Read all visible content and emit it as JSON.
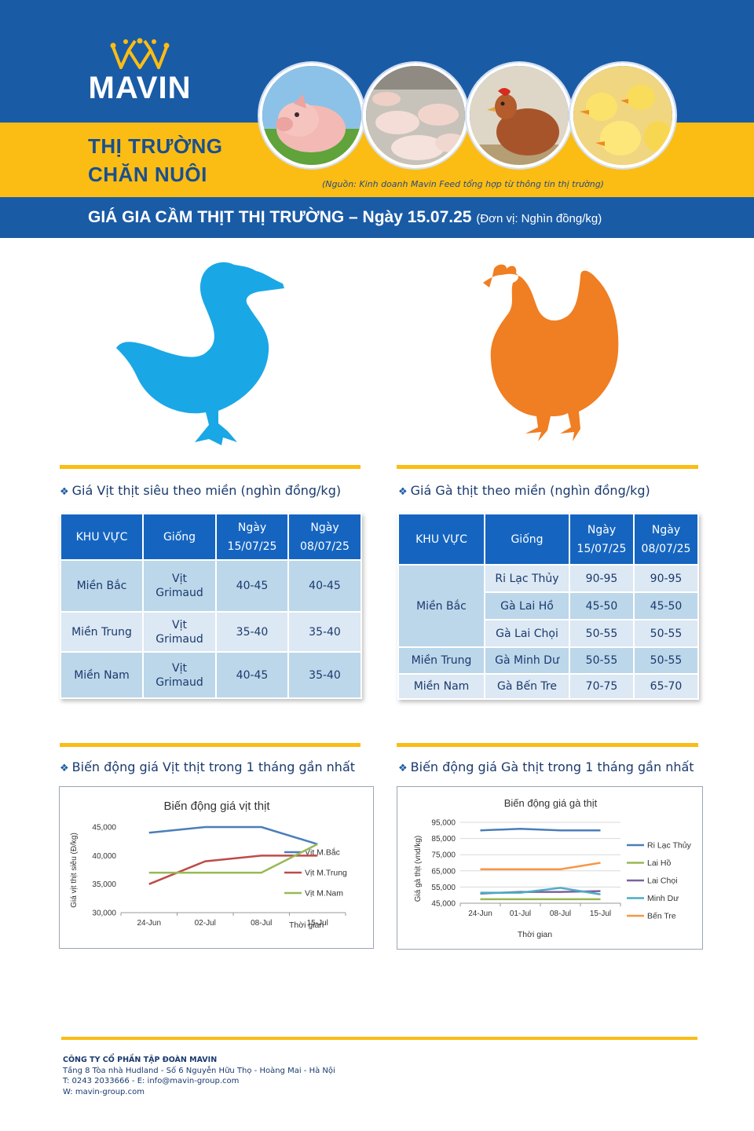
{
  "brand": {
    "logo_text": "MAVIN",
    "crown_icon": "crown-icon"
  },
  "header": {
    "section_title_line1": "THỊ TRƯỜNG",
    "section_title_line2": "CHĂN NUÔI",
    "source_note": "(Nguồn: Kinh doanh Mavin Feed tổng hợp từ thông tin thị trường)",
    "banner_title": "GIÁ GIA CẦM THỊT THỊ TRƯỜNG – Ngày 15.07.25",
    "banner_unit": "(Đơn vị: Nghìn đồng/kg)",
    "photos": [
      "piglet-photo",
      "pig-farm-photo",
      "chicken-photo",
      "ducklings-photo"
    ]
  },
  "colors": {
    "brand_blue": "#1a5ba6",
    "brand_yellow": "#fbbd14",
    "duck_blue": "#1aa7e6",
    "hen_orange": "#f07e22"
  },
  "duck_table": {
    "heading": "Giá Vịt thịt siêu theo miền (nghìn đồng/kg)",
    "columns": [
      "KHU VỰC",
      "Giống",
      "Ngày 15/07/25",
      "Ngày 08/07/25"
    ],
    "rows": [
      {
        "region": "Miền Bắc",
        "breed": "Vịt Grimaud",
        "price_new": "40-45",
        "price_old": "40-45"
      },
      {
        "region": "Miền Trung",
        "breed": "Vịt Grimaud",
        "price_new": "35-40",
        "price_old": "35-40"
      },
      {
        "region": "Miền Nam",
        "breed": "Vịt Grimaud",
        "price_new": "40-45",
        "price_old": "35-40"
      }
    ]
  },
  "chicken_table": {
    "heading": "Giá Gà thịt theo miền (nghìn đồng/kg)",
    "columns": [
      "KHU VỰC",
      "Giống",
      "Ngày 15/07/25",
      "Ngày 08/07/25"
    ],
    "rows": [
      {
        "region": "Miền Bắc",
        "breed": "Ri Lạc Thủy",
        "price_new": "90-95",
        "price_old": "90-95"
      },
      {
        "region": "",
        "breed": "Gà Lai Hồ",
        "price_new": "45-50",
        "price_old": "45-50"
      },
      {
        "region": "",
        "breed": "Gà Lai Chọi",
        "price_new": "50-55",
        "price_old": "50-55"
      },
      {
        "region": "Miền Trung",
        "breed": "Gà Minh Dư",
        "price_new": "50-55",
        "price_old": "50-55"
      },
      {
        "region": "Miền Nam",
        "breed": "Gà Bến Tre",
        "price_new": "70-75",
        "price_old": "65-70"
      }
    ]
  },
  "duck_chart_heading": "Biến động giá Vịt thịt trong 1 tháng gần nhất",
  "chicken_chart_heading": "Biến động giá Gà thịt trong 1 tháng gần nhất",
  "chart_data": [
    {
      "type": "line",
      "title": "Biến động giá vịt thịt",
      "xlabel": "Thời gian",
      "ylabel": "Giá vịt thịt siêu (Đ/kg)",
      "categories": [
        "24-Jun",
        "02-Jul",
        "08-Jul",
        "15-Jul"
      ],
      "ylim": [
        30000,
        45000
      ],
      "yticks": [
        30000,
        35000,
        40000,
        45000
      ],
      "ytick_labels": [
        "30,000",
        "35,000",
        "40,000",
        "45,000"
      ],
      "legend": "right",
      "series": [
        {
          "name": "Vịt M.Bắc",
          "color": "#4a7ebb",
          "values": [
            44000,
            45000,
            45000,
            42000
          ]
        },
        {
          "name": "Vịt M.Trung",
          "color": "#be4b48",
          "values": [
            35000,
            39000,
            40000,
            40000
          ]
        },
        {
          "name": "Vịt M.Nam",
          "color": "#98b954",
          "values": [
            37000,
            37000,
            37000,
            42000
          ]
        }
      ]
    },
    {
      "type": "line",
      "title": "Biến động giá gà thịt",
      "xlabel": "Thời gian",
      "ylabel": "Giá gà thịt (vnd/kg)",
      "categories": [
        "24-Jun",
        "01-Jul",
        "08-Jul",
        "15-Jul"
      ],
      "ylim": [
        45000,
        95000
      ],
      "yticks": [
        45000,
        55000,
        65000,
        75000,
        85000,
        95000
      ],
      "ytick_labels": [
        "45,000",
        "55,000",
        "65,000",
        "75,000",
        "85,000",
        "95,000"
      ],
      "grid": true,
      "legend": "right",
      "series": [
        {
          "name": "Ri Lạc Thủy",
          "color": "#4a7ebb",
          "values": [
            90000,
            91000,
            90000,
            90000
          ]
        },
        {
          "name": "Lai Hồ",
          "color": "#98b954",
          "values": [
            47500,
            47500,
            47500,
            47500
          ]
        },
        {
          "name": "Lai Chọi",
          "color": "#7d60a0",
          "values": [
            51000,
            52000,
            52000,
            52500
          ]
        },
        {
          "name": "Minh Dư",
          "color": "#4bacc6",
          "values": [
            51500,
            51500,
            54500,
            50500
          ]
        },
        {
          "name": "Bến Tre",
          "color": "#f79646",
          "values": [
            66000,
            66000,
            66000,
            70000
          ]
        }
      ]
    }
  ],
  "footer": {
    "company": "CÔNG TY CỔ PHẦN TẬP ĐOÀN MAVIN",
    "address": "Tầng 8 Tòa nhà Hudland - Số 6 Nguyễn Hữu Thọ - Hoàng Mai - Hà Nội",
    "contact": "T: 0243 2033666  -  E: info@mavin-group.com",
    "website": "W: mavin-group.com"
  }
}
